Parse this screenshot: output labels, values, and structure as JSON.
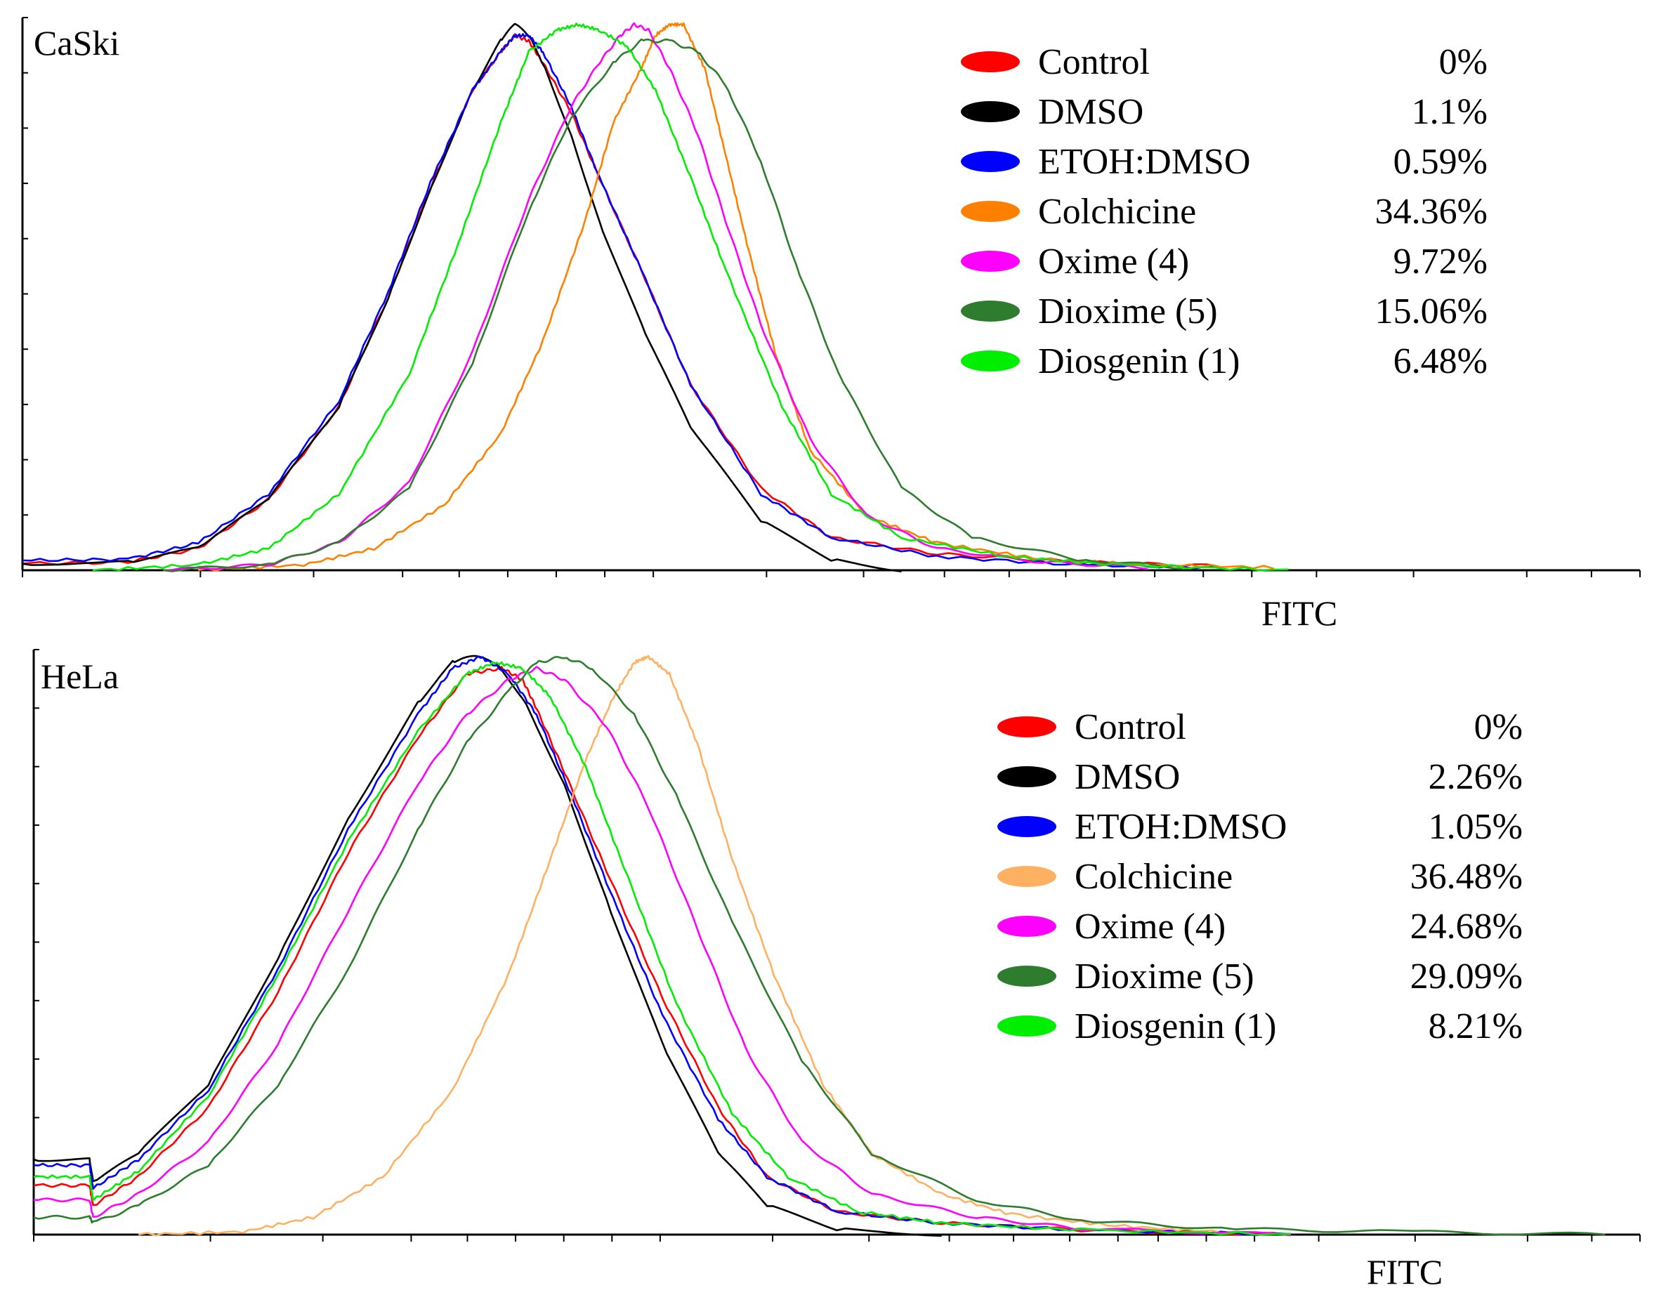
{
  "chart_data": [
    {
      "type": "line",
      "title": "CaSki",
      "xlabel": "FITC",
      "ylabel": "",
      "x_ticks": 16,
      "y_ticks": 10,
      "series": [
        {
          "name": "Control",
          "percent": "0%",
          "color": "#ff0000",
          "x": [
            0,
            150,
            250,
            350,
            450,
            520,
            580,
            640,
            680,
            700,
            720,
            740,
            780,
            820,
            880,
            950,
            1050,
            1150,
            1300,
            1500,
            1700
          ],
          "y": [
            0.012,
            0.015,
            0.04,
            0.13,
            0.3,
            0.5,
            0.7,
            0.88,
            0.95,
            0.98,
            0.97,
            0.93,
            0.84,
            0.72,
            0.55,
            0.34,
            0.15,
            0.06,
            0.03,
            0.015,
            0.008
          ]
        },
        {
          "name": "DMSO",
          "percent": "1.1%",
          "color": "#000000",
          "x": [
            0,
            150,
            250,
            350,
            450,
            520,
            580,
            640,
            680,
            700,
            720,
            740,
            780,
            820,
            880,
            950,
            1050,
            1150,
            1250
          ],
          "y": [
            0.012,
            0.015,
            0.04,
            0.13,
            0.3,
            0.5,
            0.7,
            0.88,
            0.97,
            1.0,
            0.98,
            0.93,
            0.8,
            0.64,
            0.45,
            0.26,
            0.09,
            0.02,
            0.0
          ]
        },
        {
          "name": "ETOH:DMSO",
          "percent": "0.59%",
          "color": "#0000ff",
          "x": [
            0,
            150,
            250,
            350,
            450,
            520,
            580,
            640,
            680,
            700,
            720,
            740,
            780,
            820,
            880,
            950,
            1050,
            1150,
            1300,
            1500,
            1700
          ],
          "y": [
            0.018,
            0.02,
            0.05,
            0.14,
            0.31,
            0.51,
            0.71,
            0.88,
            0.95,
            0.98,
            0.98,
            0.95,
            0.85,
            0.72,
            0.55,
            0.34,
            0.14,
            0.06,
            0.025,
            0.01,
            0.005
          ]
        },
        {
          "name": "Colchicine",
          "percent": "34.36%",
          "color": "#ff8000",
          "x": [
            250,
            400,
            500,
            600,
            680,
            740,
            800,
            840,
            880,
            900,
            920,
            940,
            970,
            1000,
            1030,
            1070,
            1120,
            1200,
            1300,
            1450,
            1600,
            1780
          ],
          "y": [
            0.0,
            0.01,
            0.04,
            0.12,
            0.25,
            0.42,
            0.64,
            0.82,
            0.92,
            0.98,
            1.0,
            1.0,
            0.92,
            0.76,
            0.6,
            0.4,
            0.22,
            0.1,
            0.05,
            0.02,
            0.01,
            0.005
          ]
        },
        {
          "name": "Oxime (4)",
          "percent": "9.72%",
          "color": "#ff00ff",
          "x": [
            200,
            350,
            450,
            550,
            640,
            720,
            780,
            820,
            850,
            870,
            890,
            920,
            960,
            1000,
            1050,
            1120,
            1200,
            1300,
            1450,
            1600
          ],
          "y": [
            0.0,
            0.01,
            0.05,
            0.16,
            0.4,
            0.68,
            0.85,
            0.93,
            0.98,
            1.0,
            0.99,
            0.92,
            0.8,
            0.64,
            0.45,
            0.24,
            0.1,
            0.04,
            0.015,
            0.005
          ]
        },
        {
          "name": "Dioxime (5)",
          "percent": "15.06%",
          "color": "#2e7d2e",
          "x": [
            200,
            350,
            450,
            550,
            640,
            720,
            780,
            840,
            880,
            920,
            960,
            1000,
            1050,
            1100,
            1160,
            1250,
            1350,
            1500,
            1650
          ],
          "y": [
            0.0,
            0.01,
            0.05,
            0.15,
            0.38,
            0.66,
            0.83,
            0.93,
            0.97,
            0.97,
            0.95,
            0.89,
            0.75,
            0.56,
            0.36,
            0.15,
            0.06,
            0.02,
            0.005
          ]
        },
        {
          "name": "Diosgenin (1)",
          "percent": "6.48%",
          "color": "#00ee00",
          "x": [
            100,
            250,
            350,
            450,
            550,
            620,
            680,
            720,
            760,
            790,
            820,
            860,
            900,
            950,
            1000,
            1080,
            1150,
            1250,
            1400,
            1550,
            1800
          ],
          "y": [
            0.0,
            0.01,
            0.04,
            0.14,
            0.36,
            0.6,
            0.82,
            0.95,
            0.99,
            1.0,
            0.99,
            0.96,
            0.88,
            0.72,
            0.55,
            0.3,
            0.14,
            0.06,
            0.025,
            0.01,
            0.0
          ]
        }
      ]
    },
    {
      "type": "line",
      "title": "HeLa",
      "xlabel": "FITC",
      "ylabel": "",
      "x_ticks": 16,
      "y_ticks": 10,
      "series": [
        {
          "name": "Control",
          "percent": "0%",
          "color": "#ff0000",
          "x": [
            0,
            80,
            85,
            150,
            250,
            350,
            450,
            550,
            620,
            670,
            700,
            720,
            760,
            820,
            900,
            980,
            1050,
            1150,
            1300,
            1500,
            1800
          ],
          "y": [
            0.085,
            0.085,
            0.05,
            0.1,
            0.22,
            0.42,
            0.66,
            0.86,
            0.97,
            0.98,
            0.96,
            0.91,
            0.8,
            0.63,
            0.41,
            0.22,
            0.1,
            0.04,
            0.02,
            0.008,
            0.0
          ]
        },
        {
          "name": "DMSO",
          "percent": "2.26%",
          "color": "#000000",
          "x": [
            0,
            80,
            85,
            150,
            250,
            350,
            450,
            550,
            600,
            630,
            660,
            700,
            760,
            820,
            900,
            980,
            1050,
            1150,
            1300
          ],
          "y": [
            0.13,
            0.13,
            0.09,
            0.14,
            0.26,
            0.48,
            0.72,
            0.92,
            0.99,
            1.0,
            0.99,
            0.93,
            0.78,
            0.58,
            0.33,
            0.14,
            0.05,
            0.01,
            0.0
          ]
        },
        {
          "name": "ETOH:DMSO",
          "percent": "1.05%",
          "color": "#0000ff",
          "x": [
            0,
            80,
            85,
            150,
            250,
            350,
            450,
            550,
            600,
            640,
            680,
            720,
            770,
            830,
            900,
            980,
            1050,
            1150,
            1300,
            1500,
            1800
          ],
          "y": [
            0.12,
            0.12,
            0.08,
            0.13,
            0.25,
            0.46,
            0.7,
            0.9,
            0.98,
            1.0,
            0.97,
            0.9,
            0.76,
            0.58,
            0.38,
            0.2,
            0.1,
            0.04,
            0.02,
            0.008,
            0.0
          ]
        },
        {
          "name": "Colchicine",
          "percent": "36.48%",
          "color": "#ffb060",
          "x": [
            150,
            300,
            400,
            500,
            600,
            680,
            740,
            790,
            830,
            860,
            880,
            910,
            950,
            1000,
            1060,
            1130,
            1200,
            1300,
            1400,
            1550,
            1700
          ],
          "y": [
            0.0,
            0.005,
            0.03,
            0.1,
            0.25,
            0.45,
            0.65,
            0.82,
            0.93,
            0.99,
            1.0,
            0.97,
            0.85,
            0.65,
            0.45,
            0.26,
            0.14,
            0.07,
            0.035,
            0.015,
            0.005
          ]
        },
        {
          "name": "Oxime (4)",
          "percent": "24.68%",
          "color": "#ff00ff",
          "x": [
            0,
            80,
            85,
            150,
            250,
            350,
            450,
            550,
            620,
            680,
            720,
            760,
            820,
            880,
            950,
            1020,
            1100,
            1200,
            1350,
            1500,
            1800
          ],
          "y": [
            0.06,
            0.06,
            0.03,
            0.07,
            0.16,
            0.33,
            0.56,
            0.78,
            0.9,
            0.96,
            0.98,
            0.96,
            0.88,
            0.74,
            0.53,
            0.32,
            0.16,
            0.07,
            0.03,
            0.01,
            0.0
          ]
        },
        {
          "name": "Dioxime (5)",
          "percent": "29.09%",
          "color": "#2e7d2e",
          "x": [
            0,
            80,
            85,
            150,
            250,
            350,
            450,
            550,
            620,
            680,
            720,
            760,
            800,
            860,
            920,
            1000,
            1100,
            1200,
            1350,
            1500,
            1700,
            1950,
            2250
          ],
          "y": [
            0.03,
            0.03,
            0.02,
            0.05,
            0.12,
            0.26,
            0.46,
            0.7,
            0.85,
            0.94,
            0.99,
            1.0,
            0.98,
            0.9,
            0.76,
            0.54,
            0.3,
            0.14,
            0.06,
            0.025,
            0.01,
            0.005,
            0.0
          ]
        },
        {
          "name": "Diosgenin (1)",
          "percent": "8.21%",
          "color": "#00ee00",
          "x": [
            0,
            80,
            85,
            150,
            250,
            350,
            450,
            550,
            620,
            660,
            700,
            740,
            790,
            850,
            920,
            1000,
            1080,
            1180,
            1300,
            1500,
            1800
          ],
          "y": [
            0.1,
            0.1,
            0.06,
            0.11,
            0.24,
            0.45,
            0.68,
            0.87,
            0.97,
            0.99,
            0.98,
            0.93,
            0.81,
            0.62,
            0.4,
            0.21,
            0.1,
            0.04,
            0.02,
            0.008,
            0.0
          ]
        }
      ]
    }
  ]
}
